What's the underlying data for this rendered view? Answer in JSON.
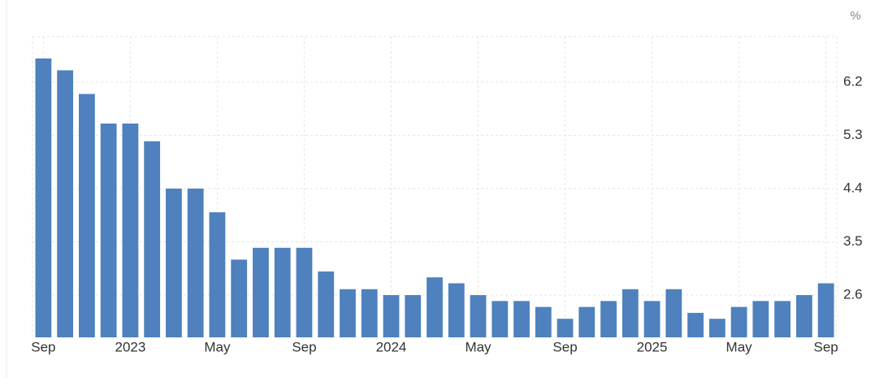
{
  "chart_data": {
    "type": "bar",
    "unit": "%",
    "categories": [
      "Sep",
      null,
      null,
      null,
      "2023",
      null,
      null,
      null,
      "May",
      null,
      null,
      null,
      "Sep",
      null,
      null,
      null,
      "2024",
      null,
      null,
      null,
      "May",
      null,
      null,
      null,
      "Sep",
      null,
      null,
      null,
      "2025",
      null,
      null,
      null,
      "May",
      null,
      null,
      null,
      "Sep"
    ],
    "values": [
      6.6,
      6.4,
      6.0,
      5.5,
      5.5,
      5.2,
      4.4,
      4.4,
      4.0,
      3.2,
      3.4,
      3.4,
      3.4,
      3.0,
      2.7,
      2.7,
      2.6,
      2.6,
      2.9,
      2.8,
      2.6,
      2.5,
      2.5,
      2.4,
      2.2,
      2.4,
      2.5,
      2.7,
      2.5,
      2.7,
      2.3,
      2.2,
      2.4,
      2.5,
      2.5,
      2.6,
      2.8
    ],
    "color": "#4e81bd",
    "ylim": [
      1.886,
      6.97
    ],
    "yticks": [
      2.6,
      3.5,
      4.4,
      5.3,
      6.2
    ],
    "grid": true
  }
}
